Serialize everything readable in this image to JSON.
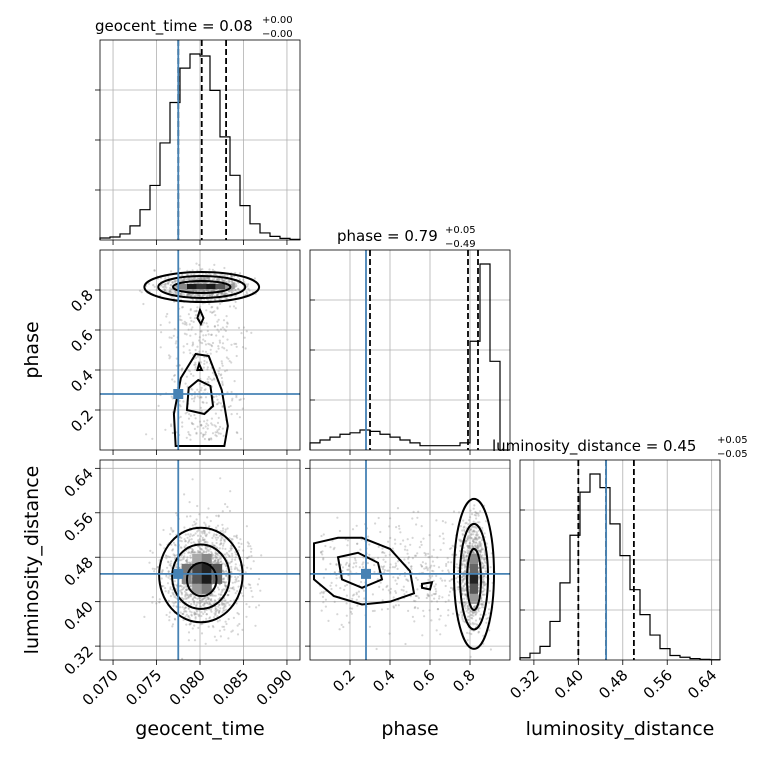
{
  "chart_data": [
    {
      "type": "corner",
      "parameters": [
        {
          "name": "geocent_time",
          "label": "geocent_time",
          "title_prefix": "geocent_time = 0.08",
          "title_plus": "+0.00",
          "title_minus": "−0.00",
          "range": [
            0.0685,
            0.0915
          ],
          "ticks": [
            0.07,
            0.075,
            0.08,
            0.085,
            0.09
          ],
          "tick_labels": [
            "0.070",
            "0.075",
            "0.080",
            "0.085",
            "0.090"
          ],
          "truth": 0.0775,
          "quantiles": [
            0.0775,
            0.0802,
            0.083
          ],
          "hist": {
            "edges_start": 0.0685,
            "bin_width": 0.00115,
            "counts": [
              0.01,
              0.015,
              0.03,
              0.07,
              0.15,
              0.27,
              0.48,
              0.68,
              0.85,
              0.92,
              0.91,
              0.74,
              0.51,
              0.32,
              0.17,
              0.08,
              0.035,
              0.018,
              0.008,
              0.003
            ]
          }
        },
        {
          "name": "phase",
          "label": "phase",
          "title_prefix": "phase = 0.79",
          "title_plus": "+0.05",
          "title_minus": "−0.49",
          "range": [
            0.0,
            1.0
          ],
          "ticks": [
            0.2,
            0.4,
            0.6,
            0.8
          ],
          "tick_labels": [
            "0.2",
            "0.4",
            "0.6",
            "0.8"
          ],
          "truth": 0.28,
          "quantiles": [
            0.3,
            0.79,
            0.84
          ],
          "hist": {
            "edges_start": 0.0,
            "bin_width": 0.05,
            "counts": [
              0.025,
              0.035,
              0.045,
              0.055,
              0.06,
              0.07,
              0.065,
              0.055,
              0.045,
              0.035,
              0.025,
              0.015,
              0.015,
              0.015,
              0.015,
              0.025,
              0.38,
              0.65,
              0.31,
              0.0
            ]
          }
        },
        {
          "name": "luminosity_distance",
          "label": "luminosity_distance",
          "title_prefix": "luminosity_distance = 0.45",
          "title_plus": "+0.05",
          "title_minus": "−0.05",
          "range": [
            0.295,
            0.655
          ],
          "ticks": [
            0.32,
            0.4,
            0.48,
            0.56,
            0.64
          ],
          "tick_labels": [
            "0.32",
            "0.40",
            "0.48",
            "0.56",
            "0.64"
          ],
          "truth": 0.45,
          "quantiles": [
            0.4,
            0.45,
            0.5
          ],
          "hist": {
            "edges_start": 0.295,
            "bin_width": 0.018,
            "counts": [
              0.01,
              0.03,
              0.06,
              0.17,
              0.34,
              0.55,
              0.74,
              0.82,
              0.76,
              0.6,
              0.46,
              0.31,
              0.2,
              0.11,
              0.05,
              0.02,
              0.012,
              0.006,
              0.003,
              0.001
            ]
          }
        }
      ],
      "axis_labels": {
        "x": [
          "geocent_time",
          "phase",
          "luminosity_distance"
        ],
        "y_rows": [
          "phase",
          "luminosity_distance"
        ]
      }
    }
  ],
  "colors": {
    "truth": "#4682b4",
    "lines": "#000000",
    "grid": "#b0b0b0"
  }
}
